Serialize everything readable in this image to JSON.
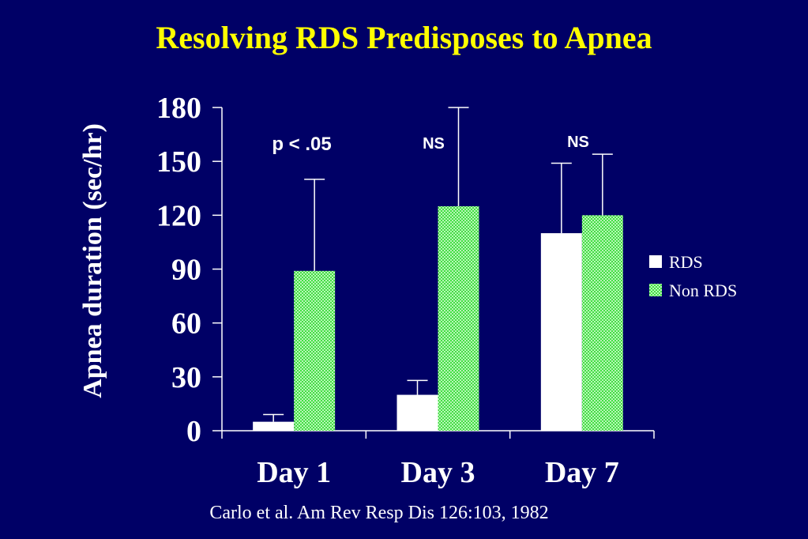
{
  "title": "Resolving RDS Predisposes to Apnea",
  "citation": "Carlo et al.  Am Rev Resp Dis 126:103, 1982",
  "colors": {
    "background": "#000066",
    "title": "#ffff00",
    "rds": "#ffffff",
    "non_rds": "#66ee66"
  },
  "chart_data": {
    "type": "bar",
    "ylabel": "Apnea duration (sec/hr)",
    "xlabel": "",
    "ylim": [
      0,
      180
    ],
    "yticks": [
      "0",
      "30",
      "60",
      "90",
      "120",
      "150",
      "180"
    ],
    "categories": [
      "Day 1",
      "Day 3",
      "Day 7"
    ],
    "series": [
      {
        "name": "RDS",
        "values": [
          5,
          20,
          110
        ],
        "error_upper": [
          9,
          28,
          149
        ]
      },
      {
        "name": "Non RDS",
        "values": [
          89,
          125,
          120
        ],
        "error_upper": [
          140,
          180,
          154
        ]
      }
    ],
    "annotations": [
      "p < .05",
      "NS",
      "NS"
    ],
    "legend_position": "right",
    "grid": false
  }
}
